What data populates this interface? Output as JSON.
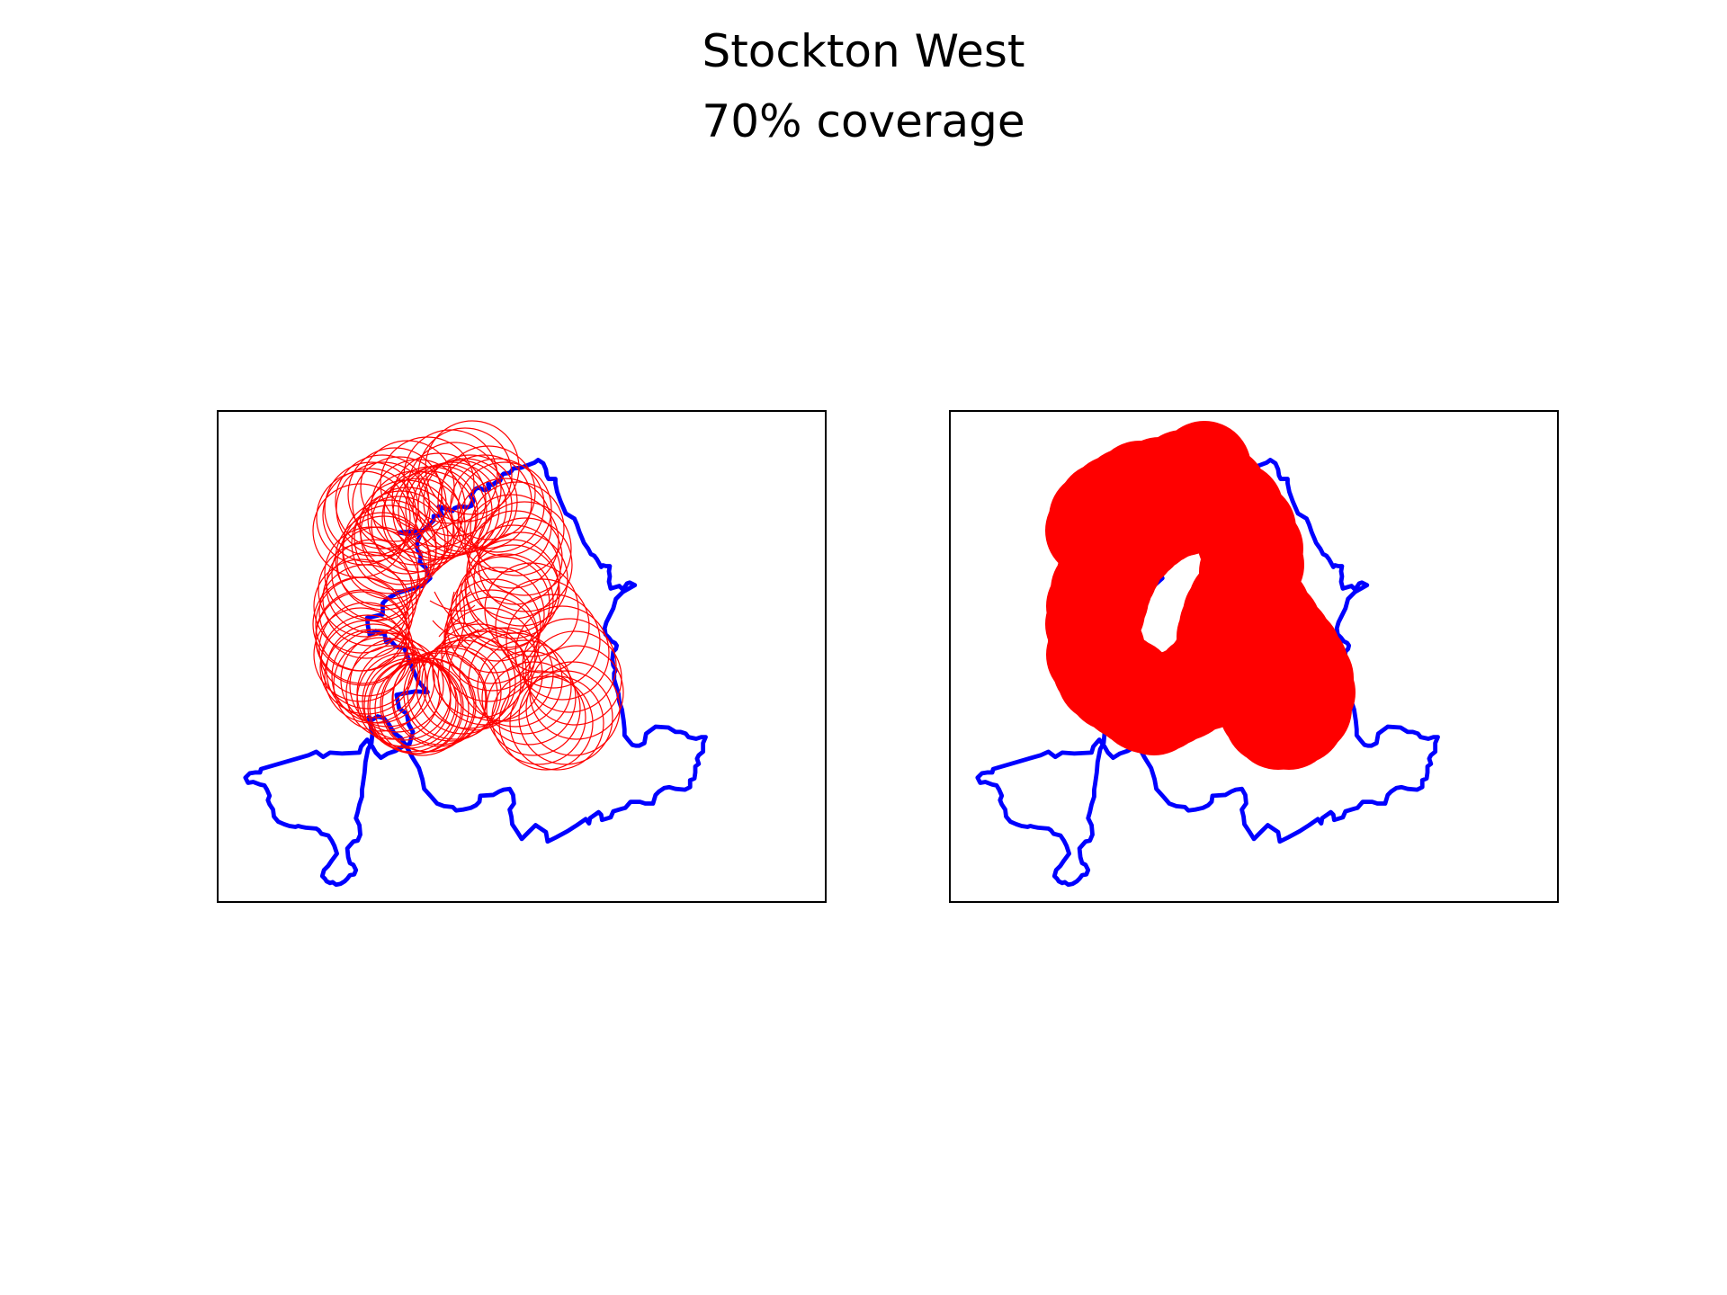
{
  "figure": {
    "title": "Stockton West",
    "subtitle": "70% coverage"
  },
  "colors": {
    "boundary": "#0000ff",
    "coverage": "#ff0000",
    "frame": "#000000",
    "background": "#ffffff"
  },
  "panels": [
    {
      "id": "left",
      "style": "outline",
      "description_mark": "circle-outlines"
    },
    {
      "id": "right",
      "style": "filled",
      "description_mark": "filled-circles"
    }
  ]
}
